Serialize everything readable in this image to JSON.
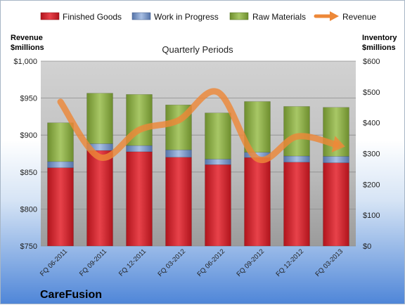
{
  "chart_data": {
    "type": "bar",
    "stacked": true,
    "title": "Quarterly Periods",
    "categories": [
      "FQ 06-2011",
      "FQ 09-2011",
      "FQ 12-2011",
      "FQ 03-2012",
      "FQ 06-2012",
      "FQ 09-2012",
      "FQ 12-2012",
      "FQ 03-2013"
    ],
    "y_left": {
      "label_line1": "Revenue",
      "label_line2": "$millions",
      "range": [
        750,
        1000
      ],
      "ticks": [
        750,
        800,
        850,
        900,
        950,
        1000
      ],
      "tick_labels": [
        "$750",
        "$800",
        "$850",
        "$900",
        "$950",
        "$1,000"
      ]
    },
    "y_right": {
      "label_line1": "Inventory",
      "label_line2": "$millions",
      "range": [
        0,
        600
      ],
      "ticks": [
        0,
        100,
        200,
        300,
        400,
        500,
        600
      ],
      "tick_labels": [
        "$0",
        "$100",
        "$200",
        "$300",
        "$400",
        "$500",
        "$600"
      ]
    },
    "series": [
      {
        "name": "Finished Goods",
        "axis": "right",
        "color": "#d2242c",
        "values": [
          254,
          310,
          306,
          288,
          264,
          287,
          272,
          270
        ]
      },
      {
        "name": "Work in Progress",
        "axis": "right",
        "color": "#6d8fc4",
        "values": [
          20,
          22,
          20,
          24,
          18,
          17,
          20,
          21
        ]
      },
      {
        "name": "Raw Materials",
        "axis": "right",
        "color": "#8fb04a",
        "values": [
          126,
          164,
          166,
          146,
          150,
          165,
          161,
          159
        ]
      }
    ],
    "line_series": {
      "name": "Revenue",
      "axis": "left",
      "color": "#ed8838",
      "values": [
        945,
        870,
        907,
        920,
        958,
        868,
        898,
        887
      ]
    },
    "legend_position": "top",
    "grid": true
  },
  "brand": "CareFusion"
}
